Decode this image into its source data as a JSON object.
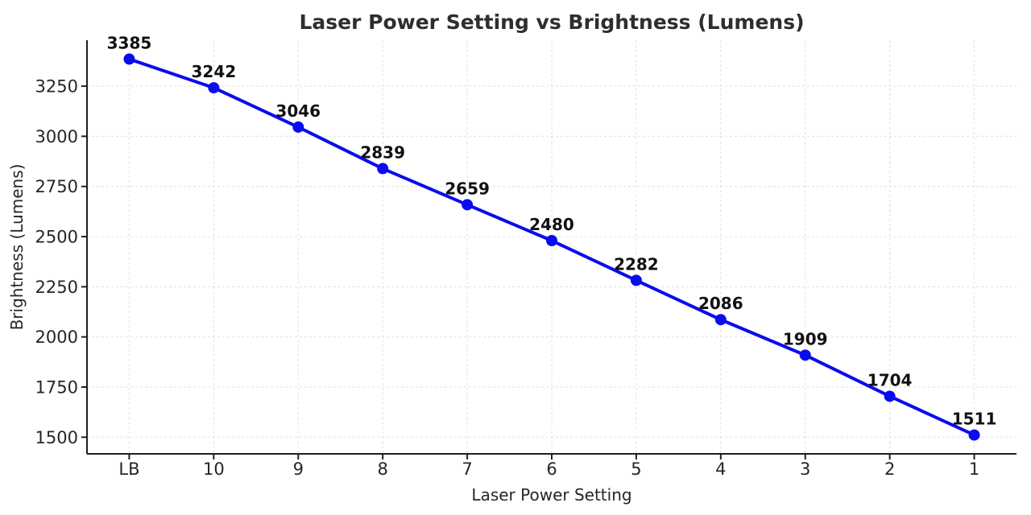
{
  "chart_data": {
    "type": "line",
    "title": "Laser Power Setting vs Brightness (Lumens)",
    "xlabel": "Laser Power Setting",
    "ylabel": "Brightness (Lumens)",
    "categories": [
      "LB",
      "10",
      "9",
      "8",
      "7",
      "6",
      "5",
      "4",
      "3",
      "2",
      "1"
    ],
    "values": [
      3385,
      3242,
      3046,
      2839,
      2659,
      2480,
      2282,
      2086,
      1909,
      1704,
      1511
    ],
    "point_labels": [
      "3385",
      "3242",
      "3046",
      "2839",
      "2659",
      "2480",
      "2282",
      "2086",
      "1909",
      "1704",
      "1511"
    ],
    "y_ticks": [
      1500,
      1750,
      2000,
      2250,
      2500,
      2750,
      3000,
      3250
    ],
    "ylim": [
      1417,
      3479
    ],
    "grid": "dashed",
    "legend": "none",
    "line_color": "#0b0bef",
    "marker_color": "#0b0bef",
    "grid_color": "#e4e4e4",
    "spine_color": "#1f1f1f",
    "title_color": "#2e2e2e",
    "tick_color": "#262626",
    "point_label_color": "#111111",
    "background_color": "#ffffff"
  }
}
